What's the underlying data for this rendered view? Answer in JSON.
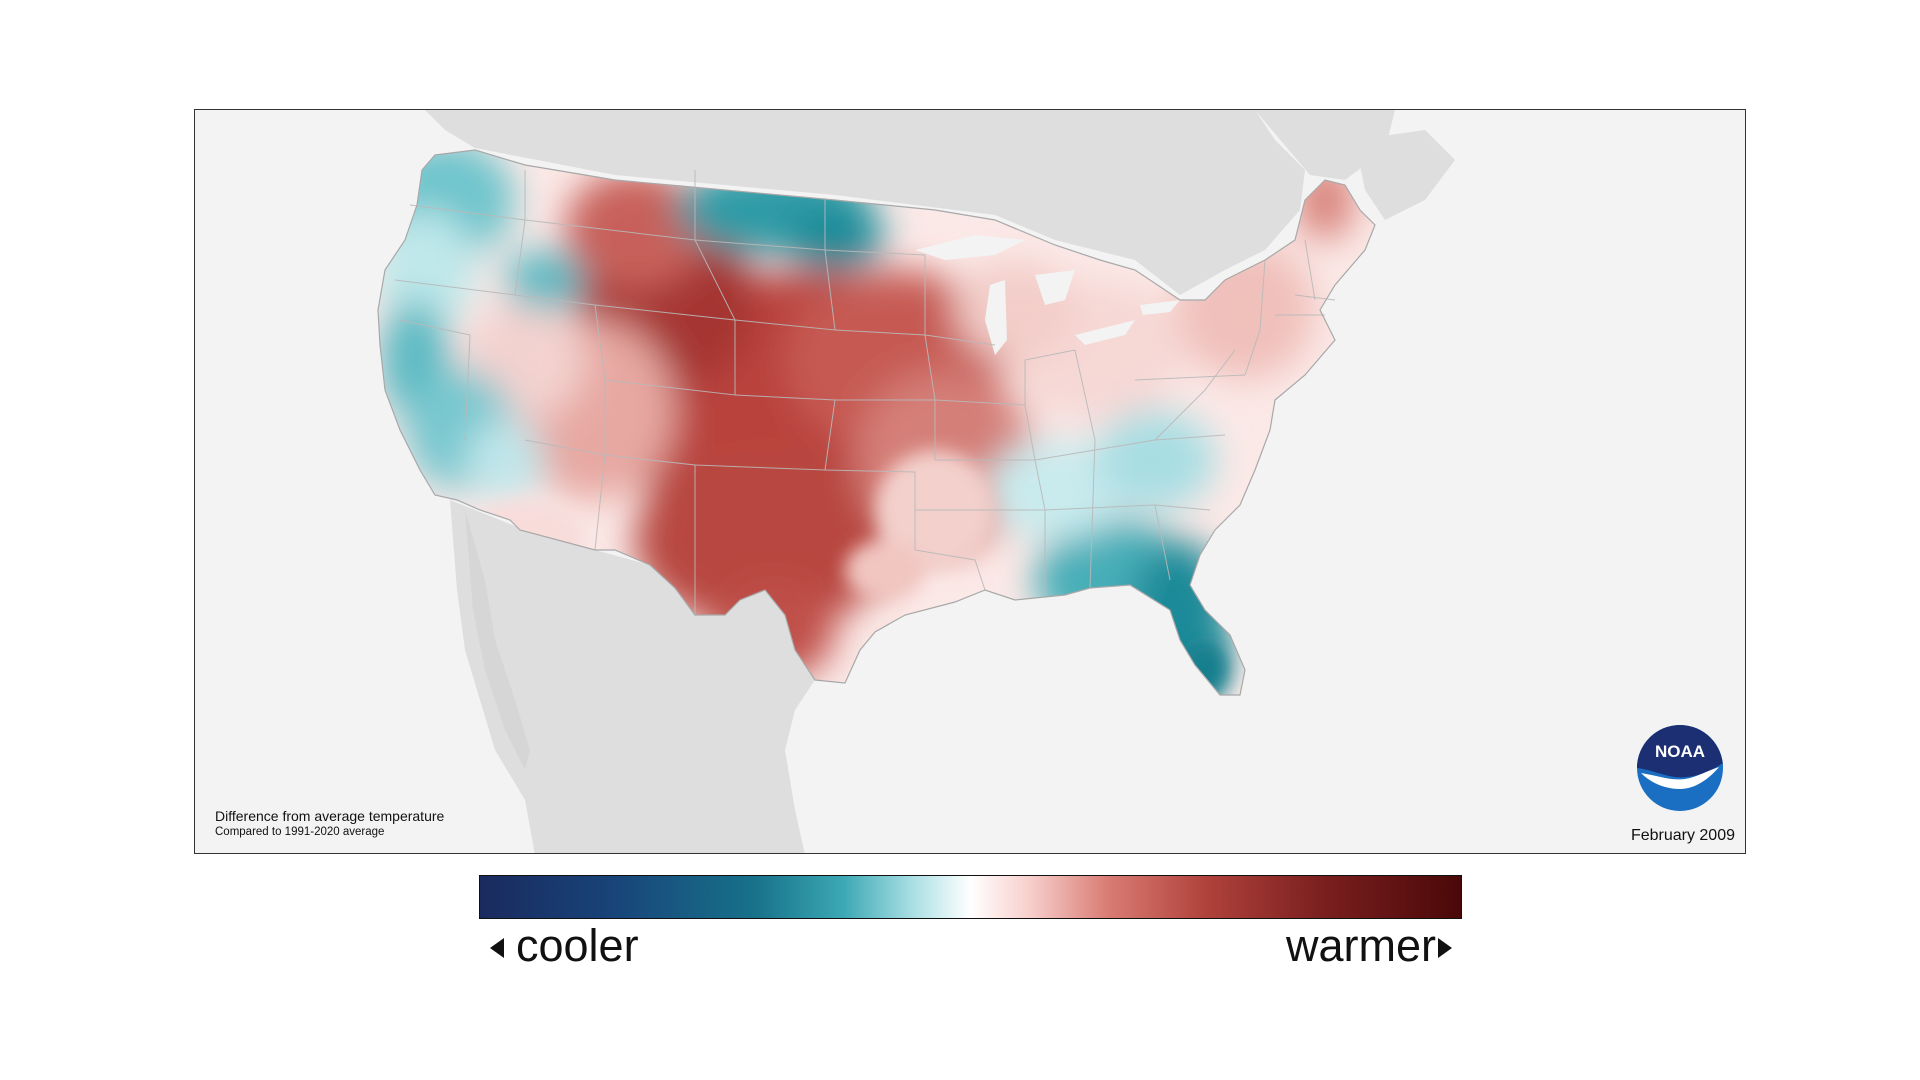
{
  "map": {
    "title_line1": "Difference from average temperature",
    "title_line2": "Compared to 1991-2020 average",
    "date": "February 2009",
    "logo_text": "NOAA",
    "anomaly_colors": {
      "much_cooler": "#1a2a5e",
      "cooler": "#1f8a98",
      "slightly_cooler": "#a8dee3",
      "neutral": "#ffffff",
      "slightly_warmer": "#f5c6c2",
      "warmer": "#c4524a",
      "much_warmer": "#8a2222"
    }
  },
  "legend": {
    "left_label": "cooler",
    "right_label": "warmer",
    "left_arrow_icon": "triangle-left-icon",
    "right_arrow_icon": "triangle-right-icon"
  }
}
